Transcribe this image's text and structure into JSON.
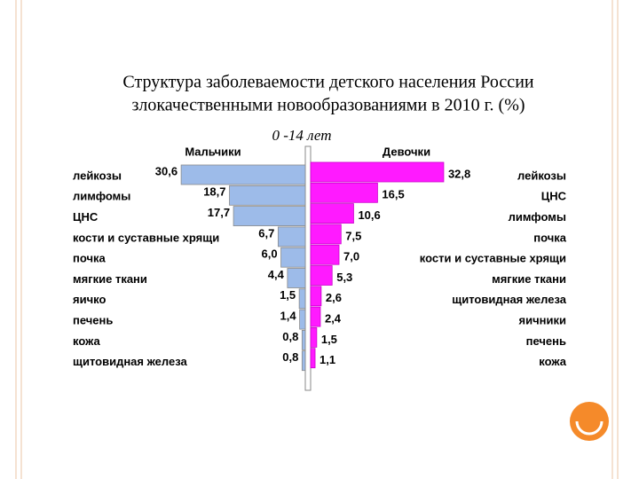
{
  "chart_data": {
    "type": "butterfly",
    "title": [
      "Структура заболеваемости детского населения России",
      "злокачественными новообразованиями в 2010 г. (%)"
    ],
    "subtitle": "0 -14 лет",
    "xlim": [
      0,
      35
    ],
    "series": [
      {
        "name": "Мальчики",
        "color": "#9dbbe9",
        "categories": [
          "лейкозы",
          "лимфомы",
          "ЦНС",
          "кости и суставные хрящи",
          "почка",
          "мягкие ткани",
          "яичко",
          "печень",
          "кожа",
          "щитовидная железа"
        ],
        "values": [
          30.6,
          18.7,
          17.7,
          6.7,
          6.0,
          4.4,
          1.5,
          1.4,
          0.8,
          0.8
        ],
        "value_labels": [
          "30,6",
          "18,7",
          "17,7",
          "6,7",
          "6,0",
          "4,4",
          "1,5",
          "1,4",
          "0,8",
          "0,8"
        ]
      },
      {
        "name": "Девочки",
        "color": "#ff1aff",
        "categories": [
          "лейкозы",
          "ЦНС",
          "лимфомы",
          "почка",
          "кости и суставные хрящи",
          "мягкие ткани",
          "щитовидная железа",
          "яичники",
          "печень",
          "кожа"
        ],
        "values": [
          32.8,
          16.5,
          10.6,
          7.5,
          7.0,
          5.3,
          2.6,
          2.4,
          1.5,
          1.1
        ],
        "value_labels": [
          "32,8",
          "16,5",
          "10,6",
          "7,5",
          "7,0",
          "5,3",
          "2,6",
          "2,4",
          "1,5",
          "1,1"
        ]
      }
    ]
  }
}
